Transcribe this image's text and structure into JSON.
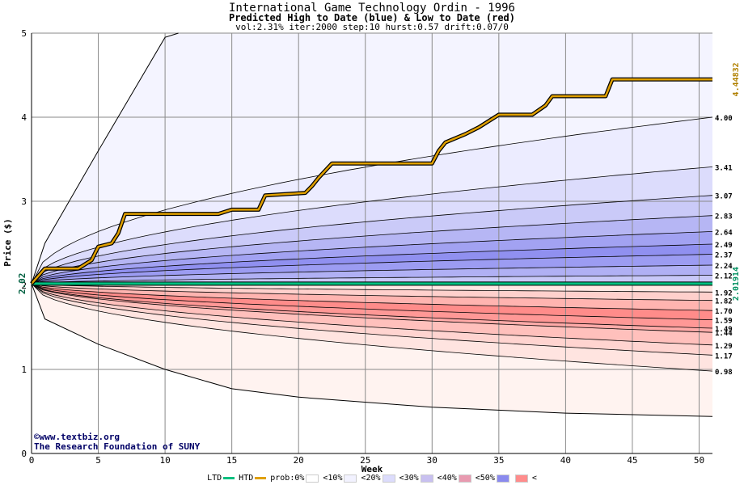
{
  "titles": {
    "title": "International Game Technology Ordin - 1996",
    "subtitle": "Predicted High to Date (blue) &  Low to Date (red)",
    "params": "vol:2.31% iter:2000 step:10 hurst:0.57 drift:0.07/0"
  },
  "credits": {
    "line1": "©www.textbiz.org",
    "line2": "The Research Foundation of SUNY"
  },
  "colors": {
    "htd": "#e0a000",
    "ltd": "#00c080",
    "blue_bands": [
      "#f2f2ff",
      "#e0e0fc",
      "#cdcdf8",
      "#b8b8f4",
      "#a0a0f0",
      "#8a8aee"
    ],
    "red_bands": [
      "#fff2f0",
      "#ffe2e0",
      "#ffd0cc",
      "#ffbcba",
      "#ffa8a6",
      "#ff9694"
    ]
  },
  "legend": {
    "items": [
      {
        "label": "LTD",
        "kind": "line",
        "color": "#00c080"
      },
      {
        "label": "HTD",
        "kind": "line",
        "color": "#e0a000"
      },
      {
        "label": "prob:0%",
        "kind": "swatch",
        "color": "#ffffff"
      },
      {
        "label": "<10%",
        "kind": "swatch",
        "color": "#f2f2ff"
      },
      {
        "label": "<20%",
        "kind": "swatch",
        "color": "#dcdcfc"
      },
      {
        "label": "<30%",
        "kind": "swatch",
        "color": "#c8c0f0"
      },
      {
        "label": "<40%",
        "kind": "swatch",
        "color": "#e89ab0"
      },
      {
        "label": "<50%",
        "kind": "swatch",
        "color": "#8a8aee"
      },
      {
        "label": "",
        "kind": "swatch",
        "color": "#ff8c8c"
      }
    ],
    "trailing": "<"
  },
  "chart_data": {
    "type": "area",
    "title": "International Game Technology Ordin - 1996",
    "xlabel": "Week",
    "ylabel": "Price ($)",
    "xlim": [
      0,
      51
    ],
    "ylim": [
      0,
      5
    ],
    "x_ticks": [
      0,
      5,
      10,
      15,
      20,
      25,
      30,
      35,
      40,
      45,
      50
    ],
    "y_ticks": [
      0,
      1,
      2,
      3,
      4,
      5
    ],
    "grid": true,
    "start_price": 2.02,
    "ltd_value": 2.01914,
    "htd_value": 4.44832,
    "ltd_label": "2.01914",
    "htd_label": "4.44832",
    "start_label": "2.02",
    "upper_percentile_end_values": [
      4.0,
      3.41,
      3.07,
      2.83,
      2.64,
      2.49,
      2.37,
      2.24,
      2.12
    ],
    "upper_percentile_labels": [
      "4.00",
      "3.41",
      "3.07",
      "2.83",
      "2.64",
      "2.49",
      "2.37",
      "2.24",
      "2.12"
    ],
    "lower_percentile_end_values": [
      1.92,
      1.82,
      1.7,
      1.59,
      1.49,
      1.44,
      1.29,
      1.17,
      0.98
    ],
    "lower_percentile_labels": [
      "1.92",
      "1.82",
      "1.70",
      "1.59",
      "1.49",
      "1.44",
      "1.29",
      "1.17",
      "0.98"
    ],
    "outer_upper": {
      "x": [
        0,
        1,
        5,
        10,
        11
      ],
      "y": [
        2.02,
        2.5,
        3.6,
        4.95,
        5.0
      ]
    },
    "outer_lower": {
      "x": [
        0,
        1,
        5,
        10,
        15,
        20,
        30,
        40,
        51
      ],
      "y": [
        2.02,
        1.6,
        1.3,
        1.0,
        0.77,
        0.67,
        0.55,
        0.48,
        0.44
      ]
    },
    "htd_series": {
      "name": "HTD",
      "x": [
        0,
        1,
        3.5,
        4.5,
        5,
        6,
        6.5,
        7,
        14,
        15,
        17,
        17.5,
        20.5,
        21,
        21.5,
        22.5,
        30,
        30.5,
        31,
        32.5,
        33.5,
        35,
        37.5,
        38.5,
        39,
        43,
        43.5,
        51
      ],
      "y": [
        2.02,
        2.2,
        2.2,
        2.3,
        2.46,
        2.5,
        2.62,
        2.85,
        2.85,
        2.9,
        2.9,
        3.07,
        3.1,
        3.18,
        3.28,
        3.45,
        3.45,
        3.6,
        3.7,
        3.8,
        3.88,
        4.03,
        4.03,
        4.14,
        4.25,
        4.25,
        4.45,
        4.45
      ]
    },
    "ltd_series": {
      "name": "LTD",
      "x": [
        0,
        51
      ],
      "y": [
        2.02,
        2.02
      ]
    }
  }
}
